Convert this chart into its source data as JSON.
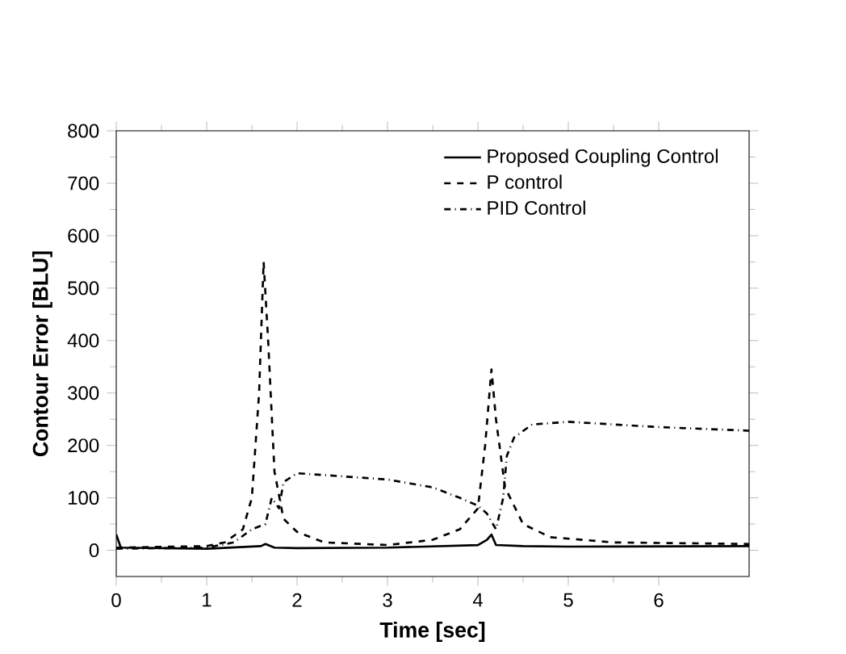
{
  "chart_data": {
    "type": "line",
    "xlabel": "Time [sec]",
    "ylabel": "Contour Error [BLU]",
    "xlim": [
      0,
      7
    ],
    "ylim": [
      -50,
      800
    ],
    "xticks": [
      0,
      1,
      2,
      3,
      4,
      5,
      6
    ],
    "yticks": [
      0,
      100,
      200,
      300,
      400,
      500,
      600,
      700,
      800
    ],
    "grid": false,
    "legend": "top right",
    "series": [
      {
        "name": "Proposed Coupling Control",
        "color": "#000000",
        "line_style": "solid",
        "x": [
          0,
          0.05,
          1,
          1.6,
          1.65,
          1.75,
          2,
          3,
          4,
          4.1,
          4.15,
          4.2,
          4.5,
          5,
          7
        ],
        "values": [
          30,
          5,
          3,
          8,
          12,
          5,
          4,
          5,
          10,
          20,
          30,
          10,
          8,
          7,
          8
        ]
      },
      {
        "name": "P control",
        "color": "#000000",
        "line_style": "dashed",
        "x": [
          0,
          1,
          1.2,
          1.4,
          1.5,
          1.58,
          1.63,
          1.68,
          1.75,
          1.85,
          2,
          2.3,
          3,
          3.5,
          3.8,
          4,
          4.08,
          4.15,
          4.2,
          4.3,
          4.5,
          4.8,
          5.5,
          7
        ],
        "values": [
          5,
          8,
          15,
          40,
          100,
          300,
          550,
          400,
          150,
          60,
          35,
          15,
          10,
          20,
          40,
          80,
          200,
          345,
          250,
          120,
          50,
          25,
          15,
          12
        ]
      },
      {
        "name": "PID Control",
        "color": "#000000",
        "line_style": "dashdot",
        "x": [
          0,
          1,
          1.3,
          1.5,
          1.65,
          1.72,
          1.8,
          1.85,
          2,
          3,
          3.5,
          3.8,
          4,
          4.1,
          4.2,
          4.28,
          4.32,
          4.4,
          4.6,
          5,
          6,
          7
        ],
        "values": [
          3,
          5,
          15,
          40,
          50,
          100,
          80,
          130,
          147,
          135,
          120,
          100,
          85,
          70,
          40,
          100,
          180,
          215,
          240,
          245,
          235,
          228
        ]
      }
    ]
  }
}
